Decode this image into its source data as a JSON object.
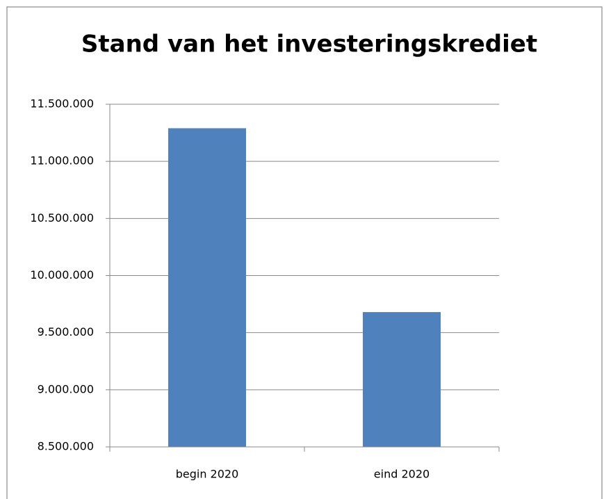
{
  "chart_data": {
    "type": "bar",
    "title": "Stand van het investeringskrediet",
    "categories": [
      "begin 2020",
      "eind 2020"
    ],
    "values": [
      11290000,
      9680000
    ],
    "color": "#4f81bd",
    "ylim": [
      8500000,
      11500000
    ],
    "yticks": [
      {
        "value": 8500000,
        "label": "8.500.000"
      },
      {
        "value": 9000000,
        "label": "9.000.000"
      },
      {
        "value": 9500000,
        "label": "9.500.000"
      },
      {
        "value": 10000000,
        "label": "10.000.000"
      },
      {
        "value": 10500000,
        "label": "10.500.000"
      },
      {
        "value": 11000000,
        "label": "11.000.000"
      },
      {
        "value": 11500000,
        "label": "11.500.000"
      }
    ],
    "grid": true
  }
}
